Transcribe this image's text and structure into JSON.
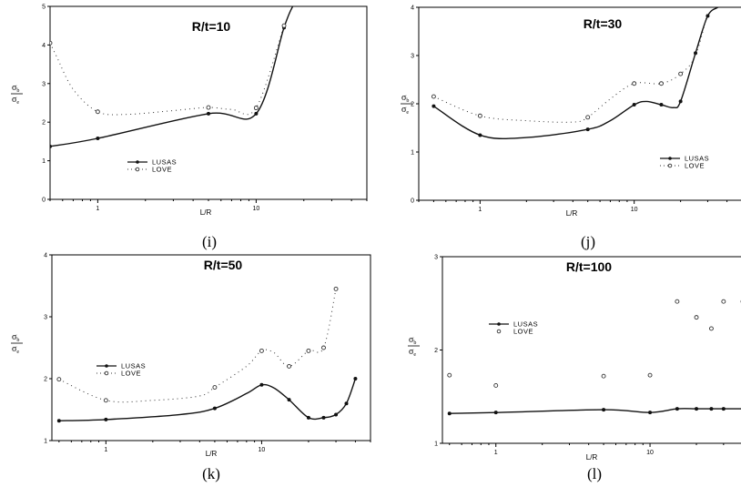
{
  "chart_data": [
    {
      "panel": "(i)",
      "type": "line",
      "title": "R/t=10",
      "xlabel": "L/R",
      "ylabel": "σb / σe",
      "x_scale": "log",
      "xlim": [
        0.5,
        50
      ],
      "ylim": [
        0,
        5
      ],
      "x_ticks": [
        1,
        10
      ],
      "x_ticklabels": [
        "1",
        "10"
      ],
      "y_ticks": [
        0,
        1,
        2,
        3,
        4,
        5
      ],
      "y_ticklabels": [
        "0",
        "1",
        "2",
        "3",
        "4",
        "5"
      ],
      "legend": {
        "placement": "lower-center"
      },
      "series": [
        {
          "name": "LUSAS",
          "style": "solid-line-filled-markers",
          "x": [
            0.5,
            1,
            5,
            10,
            15,
            17
          ],
          "y": [
            1.37,
            1.58,
            2.22,
            2.22,
            4.45,
            5.0
          ],
          "markers": [
            [
              0.5,
              1.37
            ],
            [
              1,
              1.58
            ],
            [
              5,
              2.22
            ],
            [
              10,
              2.22
            ],
            [
              15,
              4.45
            ]
          ]
        },
        {
          "name": "LOVE",
          "style": "dotted-line-open-markers",
          "x": [
            0.5,
            0.55,
            0.7,
            1,
            1.5,
            3,
            5,
            7,
            10,
            15
          ],
          "y": [
            4.05,
            3.7,
            2.85,
            2.27,
            2.2,
            2.3,
            2.38,
            2.33,
            2.37,
            4.5
          ],
          "markers": [
            [
              0.5,
              4.05
            ],
            [
              1,
              2.27
            ],
            [
              5,
              2.38
            ],
            [
              10,
              2.37
            ],
            [
              15,
              4.5
            ]
          ]
        }
      ]
    },
    {
      "panel": "(j)",
      "type": "line",
      "title": "R/t=30",
      "xlabel": "L/R",
      "ylabel": "σb / σe",
      "x_scale": "log",
      "xlim": [
        0.4,
        50
      ],
      "ylim": [
        0,
        4
      ],
      "x_ticks": [
        1,
        10
      ],
      "x_ticklabels": [
        "1",
        "10"
      ],
      "y_ticks": [
        0,
        1,
        2,
        3,
        4
      ],
      "y_ticklabels": [
        "0",
        "1",
        "2",
        "3",
        "4"
      ],
      "legend": {
        "placement": "lower-right"
      },
      "series": [
        {
          "name": "LUSAS",
          "style": "solid-line-filled-markers",
          "x": [
            0.5,
            1,
            2,
            5,
            7,
            10,
            12,
            15,
            18,
            20,
            25,
            30,
            35
          ],
          "y": [
            1.95,
            1.35,
            1.3,
            1.47,
            1.65,
            1.98,
            2.05,
            1.98,
            1.92,
            2.05,
            3.05,
            3.82,
            4.0
          ],
          "markers": [
            [
              0.5,
              1.95
            ],
            [
              1,
              1.35
            ],
            [
              5,
              1.47
            ],
            [
              10,
              1.98
            ],
            [
              15,
              1.98
            ],
            [
              20,
              2.05
            ],
            [
              25,
              3.05
            ],
            [
              30,
              3.82
            ]
          ]
        },
        {
          "name": "LOVE",
          "style": "dotted-line-open-markers",
          "x": [
            0.5,
            1,
            2,
            4,
            5,
            7,
            10,
            15,
            20,
            25,
            30
          ],
          "y": [
            2.15,
            1.75,
            1.65,
            1.62,
            1.72,
            2.1,
            2.42,
            2.42,
            2.62,
            3.0,
            3.9
          ],
          "markers": [
            [
              0.5,
              2.15
            ],
            [
              1,
              1.75
            ],
            [
              5,
              1.72
            ],
            [
              10,
              2.42
            ],
            [
              15,
              2.42
            ],
            [
              20,
              2.62
            ]
          ]
        }
      ]
    },
    {
      "panel": "(k)",
      "type": "line",
      "title": "R/t=50",
      "xlabel": "L/R",
      "ylabel": "σb / σe",
      "x_scale": "log",
      "xlim": [
        0.45,
        50
      ],
      "ylim": [
        1,
        4
      ],
      "x_ticks": [
        1,
        10
      ],
      "x_ticklabels": [
        "1",
        "10"
      ],
      "y_ticks": [
        1,
        2,
        3,
        4
      ],
      "y_ticklabels": [
        "1",
        "2",
        "3",
        "4"
      ],
      "legend": {
        "placement": "center-left"
      },
      "series": [
        {
          "name": "LUSAS",
          "style": "solid-line-filled-markers",
          "x": [
            0.5,
            1,
            3,
            5,
            8,
            10,
            12,
            15,
            20,
            25,
            30,
            35,
            40
          ],
          "y": [
            1.32,
            1.34,
            1.42,
            1.52,
            1.76,
            1.9,
            1.85,
            1.66,
            1.37,
            1.37,
            1.42,
            1.6,
            2.0
          ],
          "markers": [
            [
              0.5,
              1.32
            ],
            [
              1,
              1.34
            ],
            [
              5,
              1.52
            ],
            [
              10,
              1.9
            ],
            [
              15,
              1.66
            ],
            [
              20,
              1.37
            ],
            [
              25,
              1.37
            ],
            [
              30,
              1.42
            ],
            [
              35,
              1.6
            ],
            [
              40,
              2.0
            ]
          ]
        },
        {
          "name": "LOVE",
          "style": "dotted-line-open-markers",
          "x": [
            0.5,
            1,
            2,
            4,
            5,
            8,
            10,
            12,
            15,
            20,
            25,
            30
          ],
          "y": [
            1.99,
            1.65,
            1.65,
            1.72,
            1.86,
            2.2,
            2.45,
            2.42,
            2.2,
            2.45,
            2.5,
            3.45
          ],
          "markers": [
            [
              0.5,
              1.99
            ],
            [
              1,
              1.65
            ],
            [
              5,
              1.86
            ],
            [
              10,
              2.45
            ],
            [
              15,
              2.2
            ],
            [
              20,
              2.45
            ],
            [
              25,
              2.5
            ],
            [
              30,
              3.45
            ]
          ]
        }
      ]
    },
    {
      "panel": "(l)",
      "type": "line",
      "title": "R/t=100",
      "xlabel": "L/R",
      "ylabel": "σb / σe",
      "x_scale": "log",
      "xlim": [
        0.45,
        40
      ],
      "ylim": [
        1,
        3
      ],
      "x_ticks": [
        1,
        10
      ],
      "x_ticklabels": [
        "1",
        "10"
      ],
      "y_ticks": [
        1,
        2,
        3
      ],
      "y_ticklabels": [
        "1",
        "2",
        "3"
      ],
      "legend": {
        "placement": "upper-left"
      },
      "series": [
        {
          "name": "LUSAS",
          "style": "solid-line-filled-markers",
          "x": [
            0.5,
            1,
            5,
            10,
            15,
            20,
            25,
            30,
            40
          ],
          "y": [
            1.32,
            1.33,
            1.36,
            1.33,
            1.37,
            1.37,
            1.37,
            1.37,
            1.37
          ],
          "markers": [
            [
              0.5,
              1.32
            ],
            [
              1,
              1.33
            ],
            [
              5,
              1.36
            ],
            [
              10,
              1.33
            ],
            [
              15,
              1.37
            ],
            [
              20,
              1.37
            ],
            [
              25,
              1.37
            ],
            [
              30,
              1.37
            ],
            [
              40,
              1.37
            ]
          ]
        },
        {
          "name": "LOVE",
          "style": "scatter-open-markers",
          "x": [
            0.5,
            1,
            5,
            10,
            15,
            20,
            25,
            30,
            40
          ],
          "y": [
            1.73,
            1.62,
            1.72,
            1.73,
            2.52,
            2.35,
            2.23,
            2.52,
            2.52
          ],
          "markers": [
            [
              0.5,
              1.73
            ],
            [
              1,
              1.62
            ],
            [
              5,
              1.72
            ],
            [
              10,
              1.73
            ],
            [
              15,
              2.52
            ],
            [
              20,
              2.35
            ],
            [
              25,
              2.23
            ],
            [
              30,
              2.52
            ],
            [
              40,
              2.52
            ]
          ]
        }
      ]
    }
  ]
}
